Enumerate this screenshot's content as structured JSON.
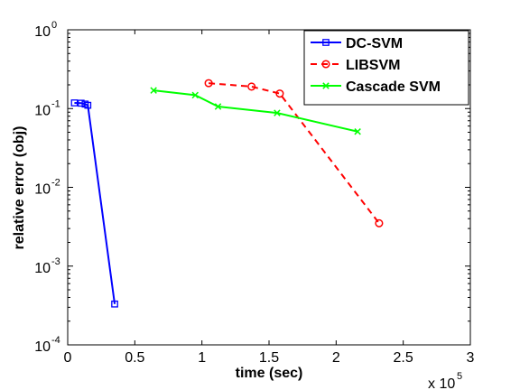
{
  "chart_data": {
    "type": "line",
    "title": "",
    "xlabel": "time (sec)",
    "ylabel": "relative error (obj)",
    "x_scale_label": "x 10",
    "x_scale_exponent": "5",
    "xlim": [
      0,
      3
    ],
    "ylim": [
      0.0001,
      1
    ],
    "y_scale": "log",
    "grid": false,
    "legend_position": "top-right",
    "x_ticks": [
      {
        "value": 0,
        "label": "0"
      },
      {
        "value": 0.5,
        "label": "0.5"
      },
      {
        "value": 1,
        "label": "1"
      },
      {
        "value": 1.5,
        "label": "1.5"
      },
      {
        "value": 2,
        "label": "2"
      },
      {
        "value": 2.5,
        "label": "2.5"
      },
      {
        "value": 3,
        "label": "3"
      }
    ],
    "y_ticks": [
      {
        "value": 1,
        "base": "10",
        "exp": "0"
      },
      {
        "value": 0.1,
        "base": "10",
        "exp": "-1"
      },
      {
        "value": 0.01,
        "base": "10",
        "exp": "-2"
      },
      {
        "value": 0.001,
        "base": "10",
        "exp": "-3"
      },
      {
        "value": 0.0001,
        "base": "10",
        "exp": "-4"
      }
    ],
    "series": [
      {
        "name": "DC-SVM",
        "color": "#0000ff",
        "line_style": "solid",
        "marker": "square",
        "x": [
          0.05,
          0.1,
          0.13,
          0.15,
          0.35
        ],
        "y": [
          0.118,
          0.117,
          0.114,
          0.11,
          0.00033
        ]
      },
      {
        "name": "LIBSVM",
        "color": "#ff0000",
        "line_style": "dashed",
        "marker": "circle",
        "x": [
          1.05,
          1.37,
          1.58,
          2.32
        ],
        "y": [
          0.21,
          0.19,
          0.155,
          0.0035
        ]
      },
      {
        "name": "Cascade SVM",
        "color": "#00ff00",
        "line_style": "solid",
        "marker": "x",
        "x": [
          0.64,
          0.95,
          1.12,
          1.56,
          2.16
        ],
        "y": [
          0.17,
          0.148,
          0.106,
          0.088,
          0.051
        ]
      }
    ]
  }
}
